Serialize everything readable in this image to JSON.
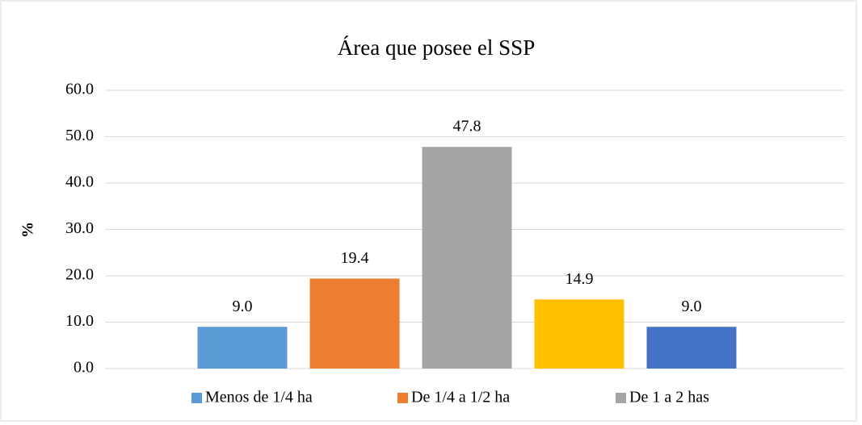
{
  "chart_data": {
    "type": "bar",
    "title": "Área que posee el SSP",
    "y_label": "%",
    "categories": [
      "Menos de 1/4 ha",
      "De 1/4 a 1/2 ha",
      "De 1 a 2 has",
      null,
      null
    ],
    "values": [
      9.0,
      19.4,
      47.8,
      14.9,
      9.0
    ],
    "value_labels": [
      "9.0",
      "19.4",
      "47.8",
      "14.9",
      "9.0"
    ],
    "colors": [
      "#5b9bd5",
      "#ed7d31",
      "#a5a5a5",
      "#ffc000",
      "#4472c4"
    ],
    "ylim": [
      0,
      60
    ],
    "yticks": [
      {
        "value": 0,
        "label": "0.0"
      },
      {
        "value": 10,
        "label": "10.0"
      },
      {
        "value": 20,
        "label": "20.0"
      },
      {
        "value": 30,
        "label": "30.0"
      },
      {
        "value": 40,
        "label": "40.0"
      },
      {
        "value": 50,
        "label": "50.0"
      },
      {
        "value": 60,
        "label": "60.0"
      }
    ],
    "grid": true,
    "legend": "bottom"
  }
}
